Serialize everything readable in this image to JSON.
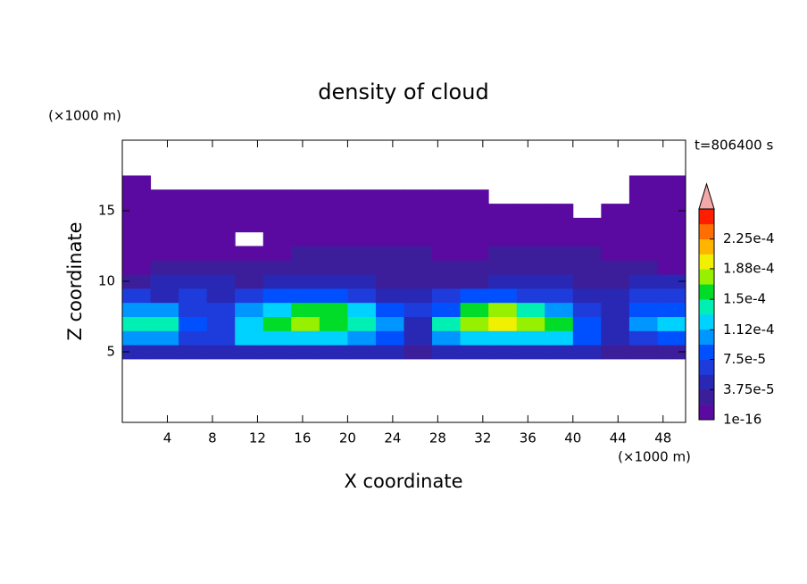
{
  "chart_data": {
    "type": "contour",
    "title": "density of cloud",
    "xlabel": "X coordinate",
    "ylabel": "Z coordinate",
    "x_unit_label": "(×1000 m)",
    "y_unit_label": "(×1000 m)",
    "annotation": "t=806400 s",
    "xlim": [
      0,
      50
    ],
    "ylim": [
      0,
      20
    ],
    "xticks": [
      4,
      8,
      12,
      16,
      20,
      24,
      28,
      32,
      36,
      40,
      44,
      48
    ],
    "yticks": [
      5,
      10,
      15
    ],
    "x": [
      1.25,
      3.75,
      6.25,
      8.75,
      11.25,
      13.75,
      16.25,
      18.75,
      21.25,
      23.75,
      26.25,
      28.75,
      31.25,
      33.75,
      36.25,
      38.75,
      41.25,
      43.75,
      46.25,
      48.75
    ],
    "z": [
      5,
      6,
      7,
      8,
      9,
      10,
      11,
      12,
      13,
      14,
      15,
      16,
      17
    ],
    "values": [
      [
        4.7e-05,
        4.7e-05,
        4.7e-05,
        4.7e-05,
        4.7e-05,
        4.7e-05,
        4.7e-05,
        4.7e-05,
        4.7e-05,
        4.7e-05,
        2.8e-05,
        4.7e-05,
        4.7e-05,
        4.7e-05,
        4.7e-05,
        4.7e-05,
        4.7e-05,
        2.8e-05,
        2.8e-05,
        2.8e-05
      ],
      [
        0.000103,
        0.000103,
        6.5e-05,
        6.5e-05,
        0.000122,
        0.000122,
        0.000122,
        0.000122,
        0.000103,
        8.4e-05,
        4.7e-05,
        0.000103,
        0.000122,
        0.000122,
        0.000122,
        0.000122,
        8.4e-05,
        4.7e-05,
        6.5e-05,
        8.4e-05
      ],
      [
        0.00014,
        0.00014,
        8.4e-05,
        6.5e-05,
        0.000122,
        0.00016,
        0.000178,
        0.00016,
        0.00014,
        0.000103,
        4.7e-05,
        0.00014,
        0.000178,
        0.000197,
        0.000178,
        0.00016,
        8.4e-05,
        4.7e-05,
        0.000103,
        0.000122
      ],
      [
        0.000103,
        0.000103,
        6.5e-05,
        6.5e-05,
        0.000103,
        0.000122,
        0.00016,
        0.00016,
        0.000122,
        8.4e-05,
        6.5e-05,
        8.4e-05,
        0.00016,
        0.000178,
        0.00014,
        0.000103,
        6.5e-05,
        4.7e-05,
        8.4e-05,
        8.4e-05
      ],
      [
        6.5e-05,
        4.7e-05,
        6.5e-05,
        4.7e-05,
        6.5e-05,
        8.4e-05,
        8.4e-05,
        8.4e-05,
        6.5e-05,
        4.7e-05,
        4.7e-05,
        6.5e-05,
        8.4e-05,
        8.4e-05,
        6.5e-05,
        6.5e-05,
        4.7e-05,
        4.7e-05,
        6.5e-05,
        6.5e-05
      ],
      [
        2.8e-05,
        4.7e-05,
        4.7e-05,
        4.7e-05,
        2.8e-05,
        4.7e-05,
        4.7e-05,
        4.7e-05,
        4.7e-05,
        2.8e-05,
        2.8e-05,
        2.8e-05,
        2.8e-05,
        4.7e-05,
        4.7e-05,
        4.7e-05,
        2.8e-05,
        2.8e-05,
        4.7e-05,
        4.7e-05
      ],
      [
        9e-06,
        2.8e-05,
        2.8e-05,
        2.8e-05,
        2.8e-05,
        2.8e-05,
        2.8e-05,
        2.8e-05,
        2.8e-05,
        2.8e-05,
        2.8e-05,
        2.8e-05,
        2.8e-05,
        2.8e-05,
        2.8e-05,
        2.8e-05,
        2.8e-05,
        2.8e-05,
        2.8e-05,
        9e-06
      ],
      [
        9e-06,
        9e-06,
        9e-06,
        9e-06,
        9e-06,
        9e-06,
        2.8e-05,
        2.8e-05,
        2.8e-05,
        2.8e-05,
        2.8e-05,
        9e-06,
        9e-06,
        2.8e-05,
        2.8e-05,
        2.8e-05,
        2.8e-05,
        9e-06,
        9e-06,
        9e-06
      ],
      [
        9e-06,
        9e-06,
        9e-06,
        9e-06,
        null,
        9e-06,
        9e-06,
        9e-06,
        9e-06,
        9e-06,
        9e-06,
        9e-06,
        9e-06,
        9e-06,
        9e-06,
        9e-06,
        9e-06,
        9e-06,
        9e-06,
        9e-06
      ],
      [
        9e-06,
        9e-06,
        9e-06,
        9e-06,
        9e-06,
        9e-06,
        9e-06,
        9e-06,
        9e-06,
        9e-06,
        9e-06,
        9e-06,
        9e-06,
        9e-06,
        9e-06,
        9e-06,
        9e-06,
        9e-06,
        9e-06,
        9e-06
      ],
      [
        9e-06,
        9e-06,
        9e-06,
        9e-06,
        9e-06,
        9e-06,
        9e-06,
        9e-06,
        9e-06,
        9e-06,
        9e-06,
        9e-06,
        9e-06,
        9e-06,
        9e-06,
        9e-06,
        null,
        9e-06,
        9e-06,
        9e-06
      ],
      [
        9e-06,
        9e-06,
        9e-06,
        9e-06,
        9e-06,
        9e-06,
        9e-06,
        9e-06,
        9e-06,
        9e-06,
        9e-06,
        9e-06,
        9e-06,
        null,
        null,
        null,
        null,
        null,
        9e-06,
        9e-06
      ],
      [
        9e-06,
        null,
        null,
        null,
        null,
        null,
        null,
        null,
        null,
        null,
        null,
        null,
        null,
        null,
        null,
        null,
        null,
        null,
        9e-06,
        9e-06
      ]
    ],
    "clim": [
      1e-16,
      0.0002625
    ],
    "colors": [
      "#5a0aa0",
      "#3c1e9b",
      "#2828b4",
      "#1e3cdc",
      "#0050ff",
      "#0096ff",
      "#00d2ff",
      "#00f0b4",
      "#00dc28",
      "#96f000",
      "#f0f000",
      "#ffb400",
      "#ff6e00",
      "#ff1e00"
    ],
    "extend_color": "#f4a8a8",
    "cticks": [
      {
        "value": 1e-16,
        "label": "1e-16"
      },
      {
        "value": 3.75e-05,
        "label": "3.75e-5"
      },
      {
        "value": 7.5e-05,
        "label": "7.5e-5"
      },
      {
        "value": 0.000112,
        "label": "1.12e-4"
      },
      {
        "value": 0.00015,
        "label": "1.5e-4"
      },
      {
        "value": 0.000188,
        "label": "1.88e-4"
      },
      {
        "value": 0.000225,
        "label": "2.25e-4"
      }
    ]
  }
}
